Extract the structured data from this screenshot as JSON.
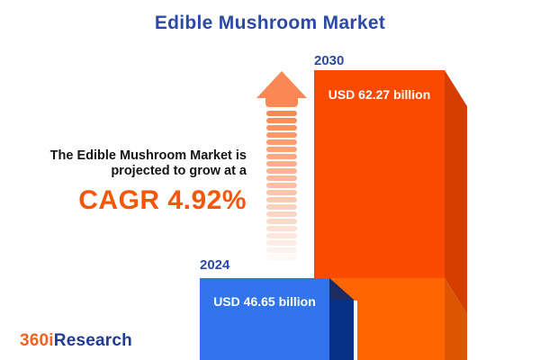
{
  "title": "Edible Mushroom Market",
  "description": {
    "line1": "The Edible Mushroom Market is",
    "line2": "projected to grow at a",
    "cagr": "CAGR 4.92%"
  },
  "bars": [
    {
      "year": "2024",
      "value_label": "USD 46.65 billion"
    },
    {
      "year": "2030",
      "value_label": "USD 62.27 billion"
    }
  ],
  "logo": {
    "prefix": "360i",
    "suffix": "Research"
  },
  "colors": {
    "title_blue": "#2B4AA6",
    "text_dark": "#151515",
    "accent_orange": "#F4570A",
    "bar_2030_front_top": "#FA4A00",
    "bar_2030_front_bottom": "#FF6602",
    "bar_2030_side_top": "#D63E00",
    "bar_2030_side_bottom": "#DC5600",
    "bar_2024_front": "#3274EB",
    "bar_2024_side": "#063088",
    "bar_2024_slant": "#1C2C63",
    "arrow_orange": "#F98854",
    "bar_text_white": "#FFFFFF",
    "logo_orange": "#F26322",
    "logo_blue": "#1E3C96"
  },
  "chart_data": {
    "type": "bar",
    "title": "Edible Mushroom Market",
    "categories": [
      "2024",
      "2030"
    ],
    "values": [
      46.65,
      62.27
    ],
    "unit": "USD billion",
    "value_labels": [
      "USD 46.65 billion",
      "USD 62.27 billion"
    ],
    "annotation": "The Edible Mushroom Market is projected to grow at a CAGR 4.92%",
    "cagr_percent": 4.92,
    "bar_colors": [
      "#3274EB",
      "#FA4A00"
    ],
    "legend": false,
    "grid": false,
    "orientation": "vertical"
  }
}
